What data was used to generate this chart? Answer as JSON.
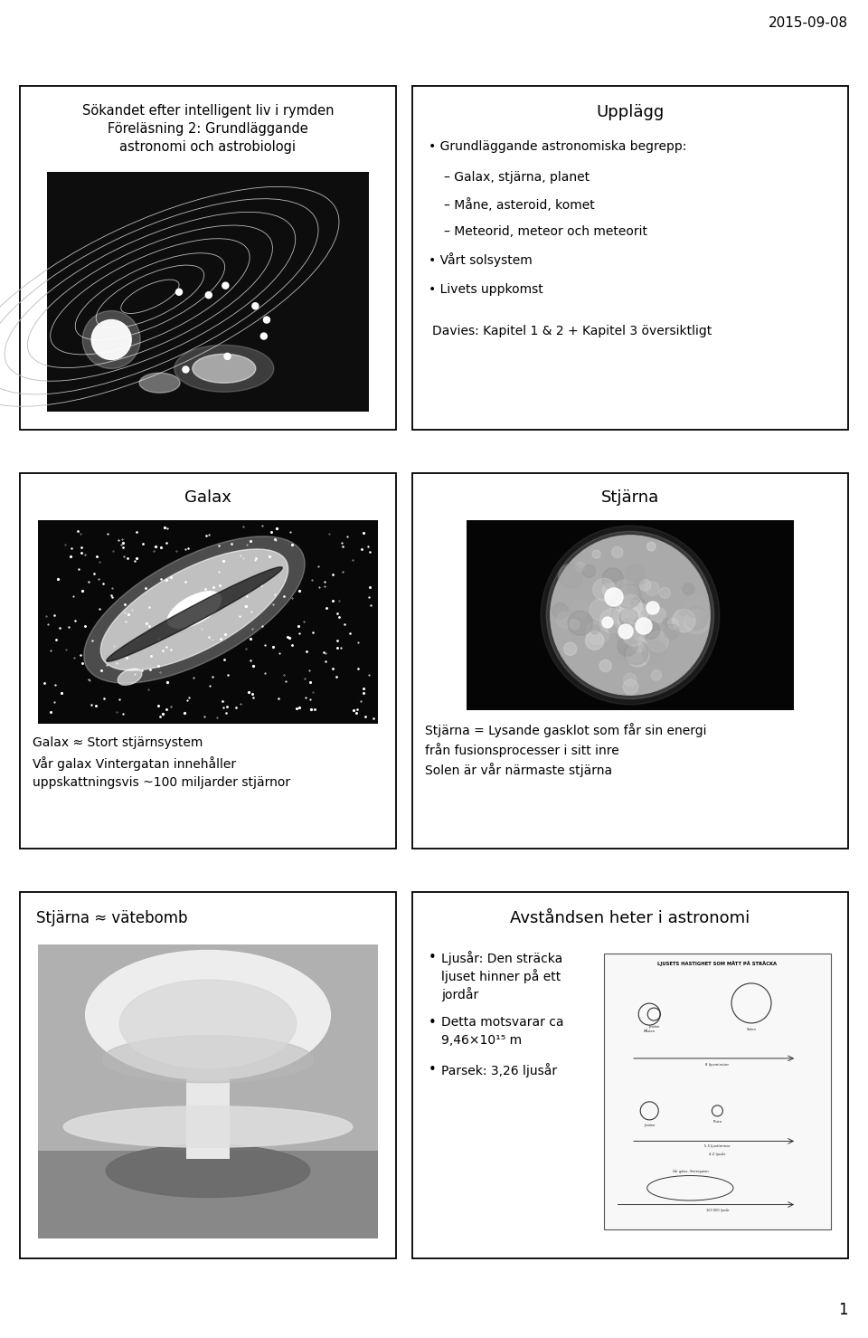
{
  "date_text": "2015-09-08",
  "page_num": "1",
  "bg_color": "#ffffff",
  "border_color": "#000000",
  "text_color": "#000000",
  "slide1_left_title_line1": "Sökandet efter intelligent liv i rymden",
  "slide1_left_title_line2": "Föreläsning 2: Grundläggande",
  "slide1_left_title_line3": "astronomi och astrobiologi",
  "slide1_right_title": "Upplägg",
  "slide1_right_items": [
    [
      "bullet",
      "Grundläggande astronomiska begrepp:"
    ],
    [
      "dash",
      "Galax, stjärna, planet"
    ],
    [
      "dash",
      "Måne, asteroid, komet"
    ],
    [
      "dash",
      "Meteorid, meteor och meteorit"
    ],
    [
      "bullet",
      "Vårt solsystem"
    ],
    [
      "bullet",
      "Livets uppkomst"
    ],
    [
      "note",
      "Davies: Kapitel 1 & 2 + Kapitel 3 översiktligt"
    ]
  ],
  "slide2_left_title": "Galax",
  "slide2_left_text1": "Galax ≈ Stort stjärnsystem",
  "slide2_left_text2": "Vår galax Vintergatan innehåller",
  "slide2_left_text3": "uppskattningsvis ~100 miljarder stjärnor",
  "slide2_right_title": "Stjärna",
  "slide2_right_text1": "Stjärna = Lysande gasklot som får sin energi",
  "slide2_right_text2": "från fusionsprocesser i sitt inre",
  "slide2_right_text3": "Solen är vår närmaste stjärna",
  "slide3_left_title": "Stjärna ≈ vätebomb",
  "slide3_right_title": "Avståndsen heter i astronomi",
  "slide3_right_text1": "Ljusår: Den sträcka",
  "slide3_right_text2": "ljuset hinner på ett",
  "slide3_right_text3": "jordår",
  "slide3_right_text4": "Detta motsvarar ca",
  "slide3_right_text5": "9,46×10¹⁵ m",
  "slide3_right_text6": "Parsek: 3,26 ljusår"
}
